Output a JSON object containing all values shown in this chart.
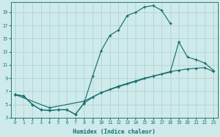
{
  "xlabel": "Humidex (Indice chaleur)",
  "background_color": "#ceeaea",
  "grid_color": "#aacece",
  "line_color": "#1a6e6e",
  "xlim": [
    -0.5,
    23.5
  ],
  "ylim": [
    3,
    20.5
  ],
  "xticks": [
    0,
    1,
    2,
    3,
    4,
    5,
    6,
    7,
    8,
    9,
    10,
    11,
    12,
    13,
    14,
    15,
    16,
    17,
    18,
    19,
    20,
    21,
    22,
    23
  ],
  "yticks": [
    3,
    5,
    7,
    9,
    11,
    13,
    15,
    17,
    19
  ],
  "curve1_x": [
    0,
    1,
    2,
    3,
    4,
    5,
    6,
    7,
    8,
    9,
    10,
    11,
    12,
    13,
    14,
    15,
    16,
    17,
    18
  ],
  "curve1_y": [
    6.5,
    6.3,
    5.0,
    4.2,
    4.1,
    4.2,
    4.2,
    3.5,
    5.2,
    9.3,
    13.2,
    15.5,
    16.3,
    18.5,
    19.0,
    19.8,
    20.0,
    19.3,
    17.3
  ],
  "curve2_x": [
    0,
    1,
    2,
    3,
    4,
    5,
    6,
    7,
    8,
    9,
    10,
    11,
    12,
    13,
    14,
    15,
    16,
    17,
    18,
    19,
    20,
    21,
    22,
    23
  ],
  "curve2_y": [
    6.5,
    6.3,
    5.0,
    4.2,
    4.1,
    4.2,
    4.2,
    3.5,
    5.2,
    6.1,
    6.8,
    7.3,
    7.8,
    8.2,
    8.6,
    9.0,
    9.3,
    9.6,
    9.9,
    14.5,
    12.2,
    11.8,
    11.3,
    10.2
  ],
  "curve3_x": [
    0,
    4,
    8,
    10,
    12,
    14,
    16,
    18,
    19,
    20,
    21,
    22,
    23
  ],
  "curve3_y": [
    6.5,
    4.5,
    5.5,
    6.8,
    7.7,
    8.5,
    9.3,
    10.0,
    10.2,
    10.4,
    10.5,
    10.6,
    10.0
  ]
}
